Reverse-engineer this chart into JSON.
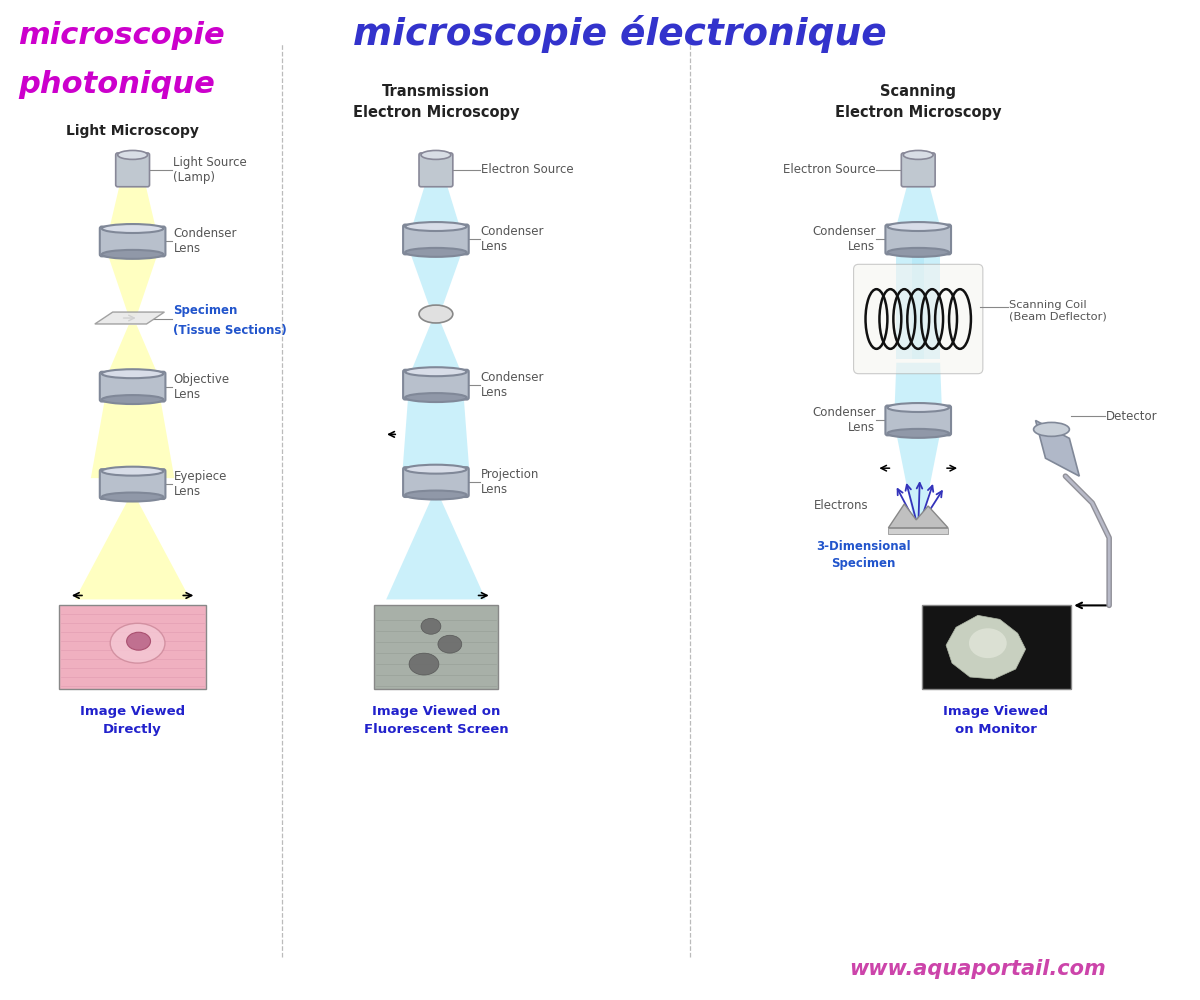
{
  "title_left_line1": "microscopie",
  "title_left_line2": "photonique",
  "title_left_sub": "Light Microscopy",
  "title_right": "microscopie électronique",
  "title_center": "Transmission\nElectron Microscopy",
  "title_scanning": "Scanning\nElectron Microscopy",
  "left_color": "#cc00cc",
  "right_color": "#3333cc",
  "url": "www.aquaportail.com",
  "beam_yellow": "#ffffa0",
  "beam_cyan": "#b0e8f8",
  "bg_color": "#ffffff",
  "label_color": "#555555",
  "specimen_color": "#2255cc",
  "caption_color": "#2222cc",
  "url_color": "#cc44aa"
}
